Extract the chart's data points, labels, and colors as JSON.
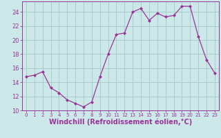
{
  "x": [
    0,
    1,
    2,
    3,
    4,
    5,
    6,
    7,
    8,
    9,
    10,
    11,
    12,
    13,
    14,
    15,
    16,
    17,
    18,
    19,
    20,
    21,
    22,
    23
  ],
  "y": [
    14.8,
    15.0,
    15.5,
    13.2,
    12.5,
    11.5,
    11.0,
    10.5,
    11.2,
    14.8,
    18.0,
    20.8,
    21.0,
    24.0,
    24.5,
    22.8,
    23.8,
    23.3,
    23.5,
    24.8,
    24.8,
    20.5,
    17.2,
    15.3
  ],
  "line_color": "#993399",
  "marker": "D",
  "marker_size": 2,
  "bg_color": "#cce8e8",
  "grid_color": "#aacccc",
  "xlabel": "Windchill (Refroidissement éolien,°C)",
  "ylim": [
    10,
    25.5
  ],
  "xlim": [
    -0.5,
    23.5
  ],
  "yticks": [
    10,
    12,
    14,
    16,
    18,
    20,
    22,
    24
  ],
  "xticks": [
    0,
    1,
    2,
    3,
    4,
    5,
    6,
    7,
    8,
    9,
    10,
    11,
    12,
    13,
    14,
    15,
    16,
    17,
    18,
    19,
    20,
    21,
    22,
    23
  ],
  "xlabel_fontsize": 7,
  "tick_fontsize": 6,
  "axis_color": "#993399"
}
